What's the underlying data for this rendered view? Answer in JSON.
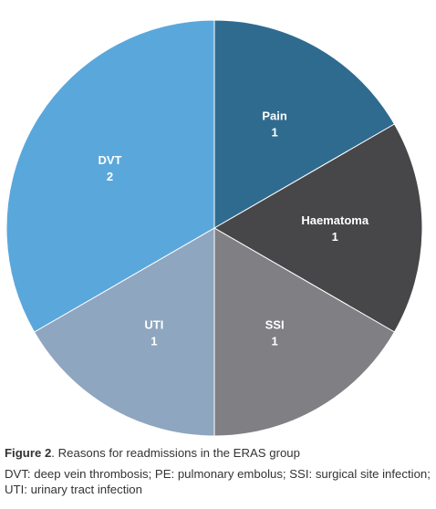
{
  "chart_data": {
    "type": "pie",
    "slices": [
      {
        "label": "Pain",
        "value": 1,
        "color": "#2f6b8f"
      },
      {
        "label": "Haematoma",
        "value": 1,
        "color": "#474749"
      },
      {
        "label": "SSI",
        "value": 1,
        "color": "#7f7f84"
      },
      {
        "label": "UTI",
        "value": 1,
        "color": "#8ea6bf"
      },
      {
        "label": "DVT",
        "value": 2,
        "color": "#5aa7dc"
      }
    ],
    "start_angle_deg": 0,
    "direction": "clockwise"
  },
  "caption": {
    "figure_label": "Figure 2",
    "figure_text": ". Reasons for readmissions in the ERAS group",
    "abbreviations": "DVT: deep vein thrombosis; PE: pulmonary embolus; SSI: surgical site infection; UTI: urinary tract infection"
  }
}
